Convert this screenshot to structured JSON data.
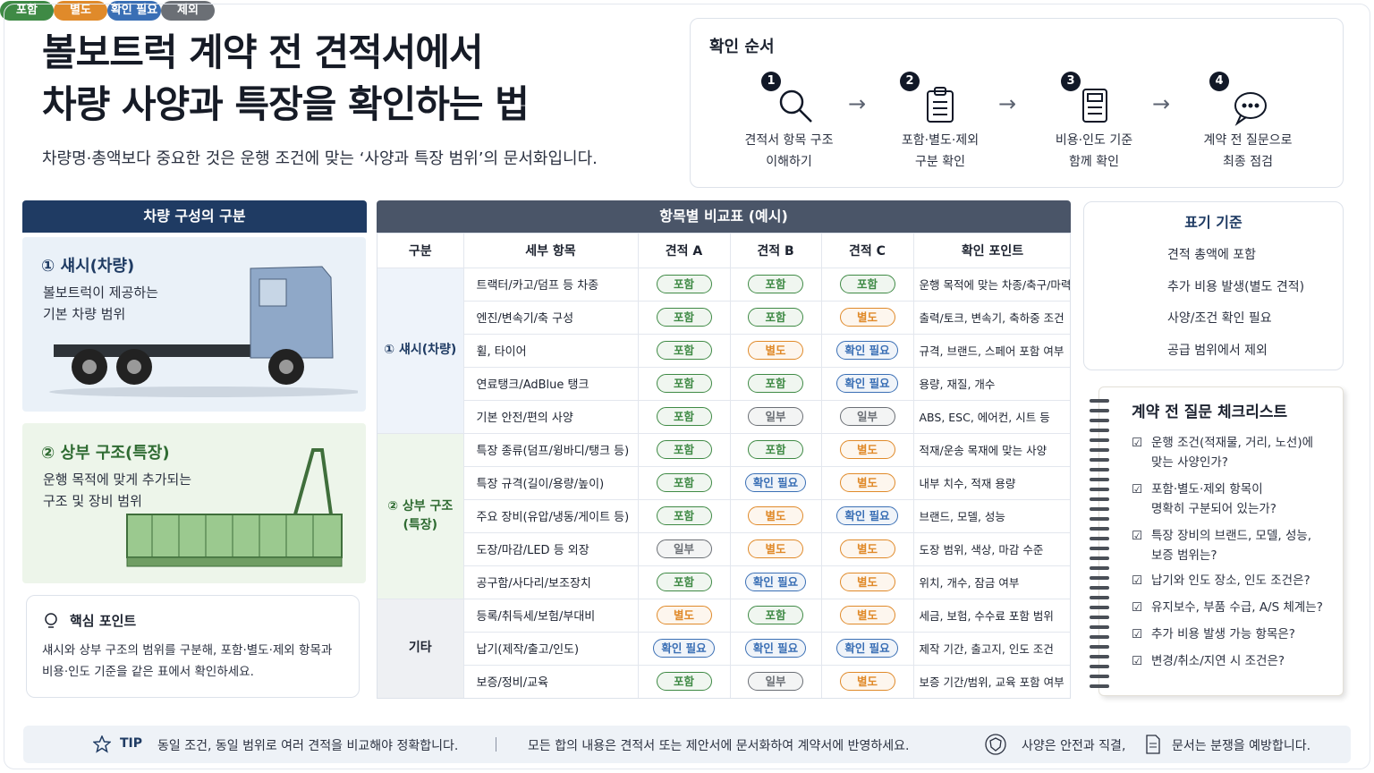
{
  "header": {
    "title_lines": [
      "볼보트럭 계약 전 견적서에서",
      "차량 사양과 특장을 확인하는 법"
    ],
    "subtitle": "차량명·총액보다 중요한 것은 운행 조건에 맞는 ‘사양과 특장 범위’의 문서화입니다."
  },
  "steps": {
    "title": "확인 순서",
    "items": [
      {
        "number": "1",
        "lines": [
          "견적서 항목 구조",
          "이해하기"
        ]
      },
      {
        "number": "2",
        "lines": [
          "포함·별도·제외",
          "구분 확인"
        ]
      },
      {
        "number": "3",
        "lines": [
          "비용·인도 기준",
          "함께 확인"
        ]
      },
      {
        "number": "4",
        "lines": [
          "계약 전 질문으로",
          "최종 점검"
        ]
      }
    ]
  },
  "composition": {
    "title": "차량 구성의 구분",
    "sections": [
      {
        "heading": "① 섀시(차량)",
        "lines": [
          "볼보트럭이 제공하는",
          "기본 차량 범위"
        ]
      },
      {
        "heading": "② 상부 구조(특장)",
        "lines": [
          "운행 목적에 맞게 추가되는",
          "구조 및 장비 범위"
        ]
      }
    ],
    "key_point": {
      "title": "핵심 포인트",
      "lines": [
        "섀시와 상부 구조의 범위를 구분해, 포함·별도·제외 항목과",
        "비용·인도 기준을 같은 표에서 확인하세요."
      ]
    }
  },
  "table": {
    "title": "항목별 비교표 (예시)",
    "headers": [
      "구분",
      "세부 항목",
      "견적 A",
      "견적 B",
      "견적 C",
      "확인 포인트"
    ],
    "groups": [
      {
        "label_lines": [
          "① 섀시(차량)"
        ],
        "rows": [
          [
            "트랙터/카고/덤프 등 차종",
            "포함",
            "포함",
            "포함",
            "운행 목적에 맞는 차종/축구/마력"
          ],
          [
            "엔진/변속기/축 구성",
            "포함",
            "포함",
            "별도",
            "출력/토크, 변속기, 축하중 조건"
          ],
          [
            "휠, 타이어",
            "포함",
            "별도",
            "확인 필요",
            "규격, 브랜드, 스페어 포함 여부"
          ],
          [
            "연료탱크/AdBlue 탱크",
            "포함",
            "포함",
            "확인 필요",
            "용량, 재질, 개수"
          ],
          [
            "기본 안전/편의 사양",
            "포함",
            "일부",
            "일부",
            "ABS, ESC, 에어컨, 시트 등"
          ]
        ]
      },
      {
        "label_lines": [
          "② 상부 구조",
          "(특장)"
        ],
        "rows": [
          [
            "특장 종류(덤프/윙바디/탱크 등)",
            "포함",
            "포함",
            "별도",
            "적재/운송 목재에 맞는 사양"
          ],
          [
            "특장 규격(길이/용량/높이)",
            "포함",
            "확인 필요",
            "별도",
            "내부 치수, 적재 용량"
          ],
          [
            "주요 장비(유압/냉동/게이트 등)",
            "포함",
            "별도",
            "확인 필요",
            "브랜드, 모델, 성능"
          ],
          [
            "도장/마감/LED 등 외장",
            "일부",
            "별도",
            "별도",
            "도장 범위, 색상, 마감 수준"
          ],
          [
            "공구함/사다리/보조장치",
            "포함",
            "확인 필요",
            "별도",
            "위치, 개수, 잠금 여부"
          ]
        ]
      },
      {
        "label_lines": [
          "기타"
        ],
        "rows": [
          [
            "등록/취득세/보험/부대비",
            "별도",
            "포함",
            "별도",
            "세금, 보험, 수수료 포함 범위"
          ],
          [
            "납기(제작/출고/인도)",
            "확인 필요",
            "확인 필요",
            "확인 필요",
            "제작 기간, 출고지, 인도 조건"
          ],
          [
            "보증/정비/교육",
            "포함",
            "일부",
            "별도",
            "보증 기간/범위, 교육 포함 여부"
          ]
        ]
      }
    ]
  },
  "legend": {
    "title": "표기 기준",
    "items": [
      {
        "tag": "포함",
        "color": "#3f8a45",
        "desc": "견적 총액에 포함"
      },
      {
        "tag": "별도",
        "color": "#e08a2a",
        "desc": "추가 비용 발생(별도 견적)"
      },
      {
        "tag": "확인 필요",
        "color": "#3a6fb5",
        "desc": "사양/조건 확인 필요"
      },
      {
        "tag": "제외",
        "color": "#6b6f75",
        "desc": "공급 범위에서 제외"
      }
    ]
  },
  "checklist": {
    "title": "계약 전 질문 체크리스트",
    "items": [
      [
        "운행 조건(적재물, 거리, 노선)에",
        "맞는 사양인가?"
      ],
      [
        "포함·별도·제외 항목이",
        "명확히 구분되어 있는가?"
      ],
      [
        "특장 장비의 브랜드, 모델, 성능,",
        "보증 범위는?"
      ],
      [
        "납기와 인도 장소, 인도 조건은?"
      ],
      [
        "유지보수, 부품 수급, A/S 체계는?"
      ],
      [
        "추가 비용 발생 가능 항목은?"
      ],
      [
        "변경/취소/지연 시 조건은?"
      ]
    ]
  },
  "footer": {
    "tip_label": "TIP",
    "tip_text": "동일 조건, 동일 범위로 여러 견적을 비교해야 정확합니다.",
    "note": "모든 합의 내용은 견적서 또는 제안서에 문서화하여 계약서에 반영하세요.",
    "safety": "사양은 안전과 직결,",
    "document": "문서는 분쟁을 예방합니다."
  }
}
